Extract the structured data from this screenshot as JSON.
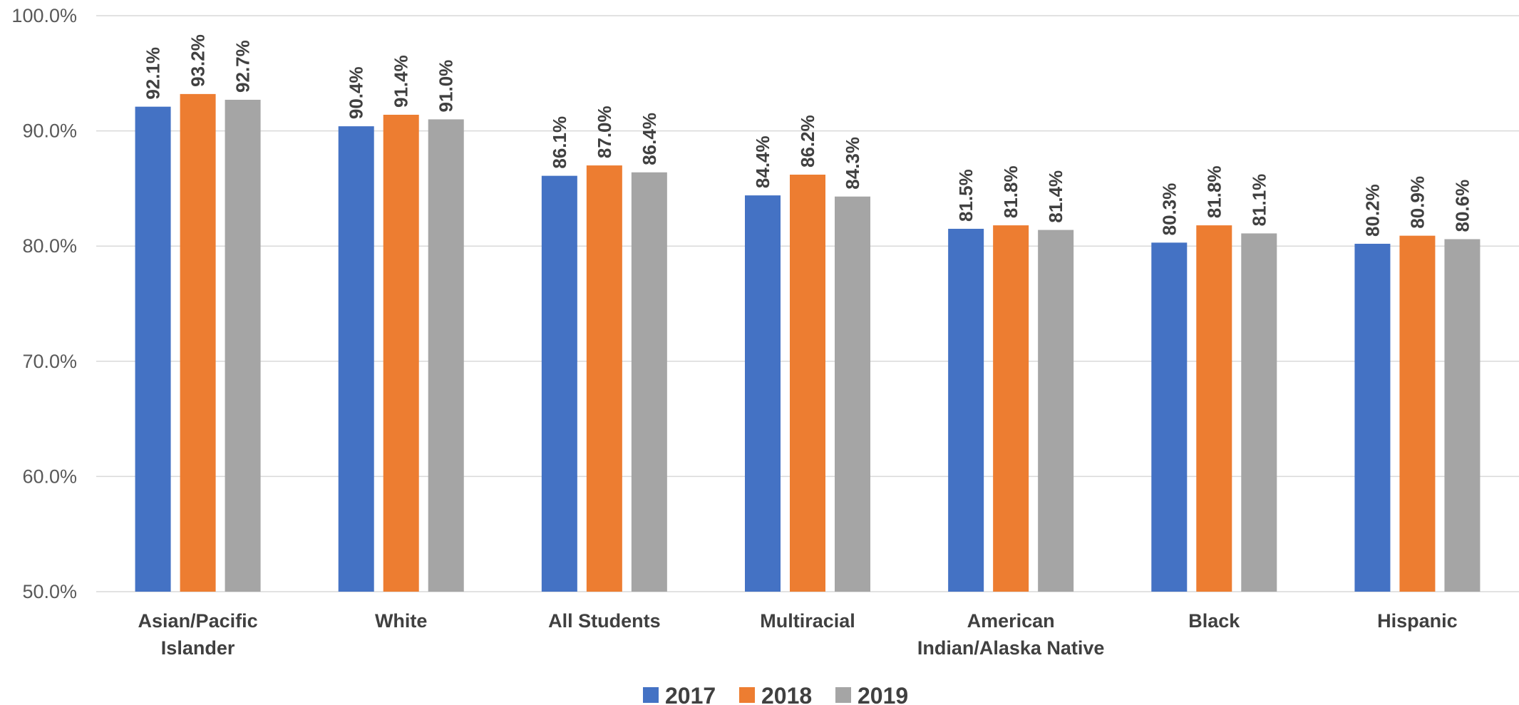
{
  "chart_data": {
    "type": "bar",
    "categories": [
      [
        "Asian/Pacific",
        "Islander"
      ],
      [
        "White"
      ],
      [
        "All Students"
      ],
      [
        "Multiracial"
      ],
      [
        "American",
        "Indian/Alaska Native"
      ],
      [
        "Black"
      ],
      [
        "Hispanic"
      ]
    ],
    "series": [
      {
        "name": "2017",
        "color": "#4472c4",
        "values": [
          92.1,
          90.4,
          86.1,
          84.4,
          81.5,
          80.3,
          80.2
        ]
      },
      {
        "name": "2018",
        "color": "#ed7d31",
        "values": [
          93.2,
          91.4,
          87.0,
          86.2,
          81.8,
          81.8,
          80.9
        ]
      },
      {
        "name": "2019",
        "color": "#a5a5a5",
        "values": [
          92.7,
          91.0,
          86.4,
          84.3,
          81.4,
          81.1,
          80.6
        ]
      }
    ],
    "data_labels": [
      [
        "92.1%",
        "90.4%",
        "86.1%",
        "84.4%",
        "81.5%",
        "80.3%",
        "80.2%"
      ],
      [
        "93.2%",
        "91.4%",
        "87.0%",
        "86.2%",
        "81.8%",
        "81.8%",
        "80.9%"
      ],
      [
        "92.7%",
        "91.0%",
        "86.4%",
        "84.3%",
        "81.4%",
        "81.1%",
        "80.6%"
      ]
    ],
    "ylim": [
      50,
      100
    ],
    "y_ticks": [
      50,
      60,
      70,
      80,
      90,
      100
    ],
    "y_tick_labels": [
      "50.0%",
      "60.0%",
      "70.0%",
      "80.0%",
      "90.0%",
      "100.0%"
    ],
    "grid": true,
    "legend_position": "bottom",
    "title": "",
    "xlabel": "",
    "ylabel": ""
  }
}
